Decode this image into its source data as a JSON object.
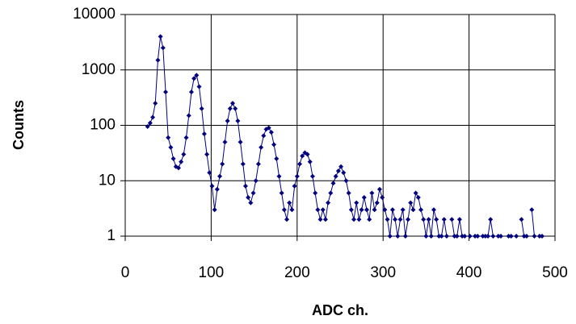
{
  "chart_data": {
    "type": "line",
    "x_label": "ADC ch.",
    "y_label": "Counts",
    "color": "#000080",
    "log_y": true,
    "grid": true,
    "x": [
      26,
      29,
      32,
      35,
      38,
      41,
      44,
      47,
      50,
      53,
      56,
      59,
      62,
      65,
      68,
      71,
      74,
      77,
      80,
      83,
      86,
      89,
      92,
      95,
      98,
      101,
      104,
      107,
      110,
      113,
      116,
      119,
      122,
      125,
      128,
      131,
      134,
      137,
      140,
      143,
      146,
      149,
      152,
      155,
      158,
      161,
      164,
      167,
      170,
      173,
      176,
      179,
      182,
      185,
      188,
      191,
      194,
      197,
      200,
      203,
      206,
      209,
      212,
      215,
      218,
      221,
      224,
      227,
      230,
      233,
      236,
      239,
      242,
      245,
      248,
      251,
      254,
      257,
      260,
      263,
      266,
      269,
      272,
      275,
      278,
      281,
      284,
      287,
      290,
      293,
      296,
      299,
      302,
      305,
      308,
      311,
      314,
      317,
      320,
      323,
      326,
      329,
      332,
      335,
      338,
      341,
      344,
      347,
      350,
      353,
      356,
      359,
      362,
      365,
      368,
      371,
      374,
      377,
      380,
      383,
      386,
      389,
      392,
      395,
      398,
      401,
      404,
      407,
      410,
      413,
      416,
      419,
      422,
      425,
      428,
      431,
      434,
      437,
      440,
      443,
      446,
      449,
      452,
      455,
      458,
      461,
      464,
      467,
      470,
      473,
      476,
      479,
      482,
      485
    ],
    "values": [
      95,
      110,
      140,
      250,
      1500,
      4000,
      2500,
      400,
      60,
      40,
      25,
      18,
      17,
      22,
      30,
      60,
      150,
      400,
      700,
      800,
      500,
      200,
      70,
      30,
      14,
      8,
      3,
      7,
      12,
      20,
      50,
      120,
      200,
      250,
      200,
      120,
      50,
      20,
      8,
      5,
      4,
      6,
      10,
      20,
      40,
      65,
      85,
      90,
      75,
      45,
      25,
      12,
      6,
      3,
      2,
      4,
      3,
      8,
      12,
      20,
      28,
      32,
      30,
      22,
      12,
      6,
      3,
      2,
      3,
      2,
      4,
      6,
      9,
      12,
      15,
      18,
      14,
      10,
      6,
      3,
      2,
      4,
      2,
      3,
      5,
      3,
      2,
      6,
      3,
      4,
      7,
      5,
      3,
      2,
      1,
      3,
      2,
      1,
      2,
      3,
      1,
      2,
      4,
      3,
      6,
      5,
      3,
      2,
      1,
      2,
      1,
      3,
      2,
      1,
      1,
      2,
      1,
      null,
      2,
      1,
      1,
      2,
      1,
      1,
      null,
      1,
      null,
      1,
      1,
      null,
      1,
      1,
      1,
      2,
      1,
      null,
      1,
      1,
      null,
      null,
      1,
      1,
      null,
      1,
      null,
      2,
      1,
      1,
      null,
      3,
      1,
      null,
      1,
      1
    ],
    "xlim": [
      0,
      500
    ],
    "xticks": [
      0,
      100,
      200,
      300,
      400,
      500
    ],
    "ylim": [
      1,
      10000
    ],
    "yticks": [
      1,
      10,
      100,
      1000,
      10000
    ]
  }
}
